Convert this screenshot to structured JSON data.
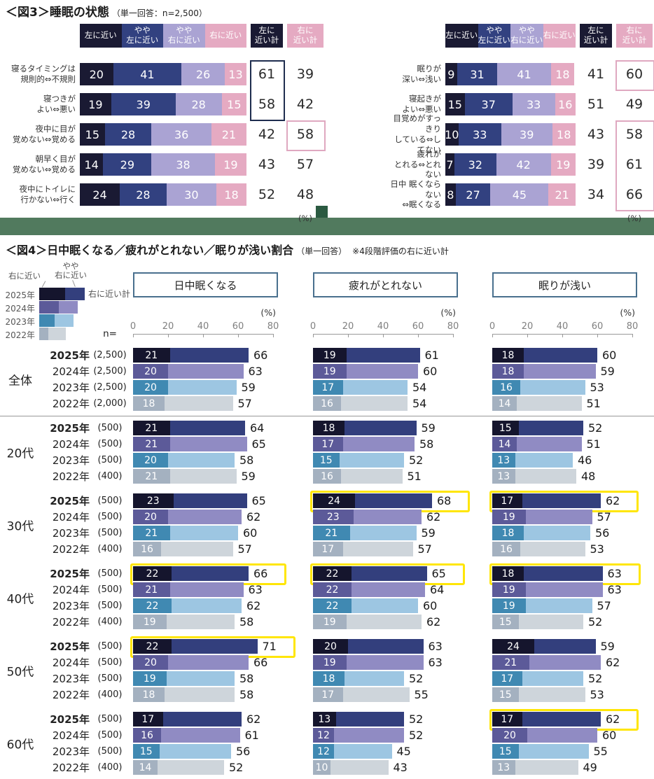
{
  "fig3": {
    "tag": "＜図3＞",
    "title": "睡眠の状態",
    "note": "（単一回答：n=2,500）",
    "seg_headers": [
      "左に近い",
      "やや\n左に近い",
      "やや\n右に近い",
      "右に近い"
    ],
    "sum_headers": [
      "左に\n近い計",
      "右に\n近い計"
    ],
    "percent_label": "(%)"
  },
  "fig4": {
    "tag": "＜図4＞",
    "title": "日中眠くなる／疲れがとれない／眠りが浅い割合",
    "note": "（単一回答）",
    "note2": "※4段階評価の右に近い計",
    "n_header": "n=",
    "percent_label": "(%)",
    "panel_titles": [
      "日中眠くなる",
      "疲れがとれない",
      "眠りが浅い"
    ],
    "legend": {
      "seg1_label": "右に近い",
      "seg2_label": "やや\n右に近い",
      "sum_label": "右に近い計",
      "years": [
        "2025年",
        "2024年",
        "2023年",
        "2022年"
      ]
    }
  },
  "colors": {
    "fig3_segments": [
      "#1a1a33",
      "#324180",
      "#aaa3d3",
      "#e5aac2"
    ],
    "fig3_sum_left_bg": "#1a1a33",
    "fig3_sum_right_bg": "#e5aac2",
    "fig3_box_navy": "#1f2d4f",
    "fig3_box_pink": "#dfa8c0",
    "fig4_year_colors": [
      [
        "#15152d",
        "#333f7d"
      ],
      [
        "#5c5a99",
        "#908bc3"
      ],
      [
        "#4089b2",
        "#9dc6e2"
      ],
      [
        "#a4b1c0",
        "#ced5db"
      ]
    ],
    "highlight_yellow": "#ffe606",
    "divider_green": "#517a5e",
    "divider_square_green": "#2b5a41",
    "panel_border": "#49708e"
  },
  "chart_data": [
    {
      "id": "fig3_left",
      "type": "bar",
      "subtype": "stacked_horizontal",
      "segments": [
        "左に近い",
        "やや左に近い",
        "やや右に近い",
        "右に近い"
      ],
      "xlim": [
        0,
        100
      ],
      "rows": [
        {
          "label_lines": [
            "寝るタイミングは",
            "規則的⇔不規則"
          ],
          "values": [
            20,
            41,
            26,
            13
          ],
          "sum_left": 61,
          "sum_right": 39
        },
        {
          "label_lines": [
            "寝つきが",
            "よい⇔悪い"
          ],
          "values": [
            19,
            39,
            28,
            15
          ],
          "sum_left": 58,
          "sum_right": 42
        },
        {
          "label_lines": [
            "夜中に目が",
            "覚めない⇔覚める"
          ],
          "values": [
            15,
            28,
            36,
            21
          ],
          "sum_left": 42,
          "sum_right": 58
        },
        {
          "label_lines": [
            "朝早く目が",
            "覚めない⇔覚める"
          ],
          "values": [
            14,
            29,
            38,
            19
          ],
          "sum_left": 43,
          "sum_right": 57
        },
        {
          "label_lines": [
            "夜中にトイレに",
            "行かない⇔行く"
          ],
          "values": [
            24,
            28,
            30,
            18
          ],
          "sum_left": 52,
          "sum_right": 48
        }
      ],
      "boxes": [
        {
          "col": "left",
          "from": 0,
          "to": 1,
          "style": "navy"
        },
        {
          "col": "right",
          "from": 2,
          "to": 2,
          "style": "pink"
        }
      ]
    },
    {
      "id": "fig3_right",
      "type": "bar",
      "subtype": "stacked_horizontal",
      "segments": [
        "左に近い",
        "やや左に近い",
        "やや右に近い",
        "右に近い"
      ],
      "xlim": [
        0,
        100
      ],
      "rows": [
        {
          "label_lines": [
            "眠りが",
            "深い⇔浅い"
          ],
          "values": [
            9,
            31,
            41,
            18
          ],
          "sum_left": 41,
          "sum_right": 60
        },
        {
          "label_lines": [
            "寝起きが",
            "よい⇔悪い"
          ],
          "values": [
            15,
            37,
            33,
            16
          ],
          "sum_left": 51,
          "sum_right": 49
        },
        {
          "label_lines": [
            "目覚めがすっきり",
            "している⇔してない"
          ],
          "values": [
            10,
            33,
            39,
            18
          ],
          "sum_left": 43,
          "sum_right": 58
        },
        {
          "label_lines": [
            "疲れが",
            "とれる⇔とれない"
          ],
          "values": [
            7,
            32,
            42,
            19
          ],
          "sum_left": 39,
          "sum_right": 61
        },
        {
          "label_lines": [
            "日中 眠くならない",
            "⇔眠くなる"
          ],
          "values": [
            8,
            27,
            45,
            21
          ],
          "sum_left": 34,
          "sum_right": 66
        }
      ],
      "boxes": [
        {
          "col": "right",
          "from": 0,
          "to": 0,
          "style": "pink"
        },
        {
          "col": "right",
          "from": 2,
          "to": 4,
          "style": "pink"
        }
      ]
    },
    {
      "id": "fig4",
      "type": "bar",
      "subtype": "grouped_horizontal_by_year",
      "xlim": [
        0,
        80
      ],
      "ticks": [
        0,
        20,
        40,
        60,
        80
      ],
      "years": [
        "2025年",
        "2024年",
        "2023年",
        "2022年"
      ],
      "measures": [
        "日中眠くなる",
        "疲れがとれない",
        "眠りが浅い"
      ],
      "groups": [
        {
          "label": "全体",
          "n": [
            "(2,500)",
            "(2,500)",
            "(2,500)",
            "(2,000)"
          ],
          "panels": [
            {
              "bars": [
                [
                  21,
                  66
                ],
                [
                  20,
                  63
                ],
                [
                  20,
                  59
                ],
                [
                  18,
                  57
                ]
              ],
              "highlights": []
            },
            {
              "bars": [
                [
                  19,
                  61
                ],
                [
                  19,
                  60
                ],
                [
                  17,
                  54
                ],
                [
                  16,
                  54
                ]
              ],
              "highlights": []
            },
            {
              "bars": [
                [
                  18,
                  60
                ],
                [
                  18,
                  59
                ],
                [
                  16,
                  53
                ],
                [
                  14,
                  51
                ]
              ],
              "highlights": []
            }
          ]
        },
        {
          "label": "20代",
          "n": [
            "(500)",
            "(500)",
            "(500)",
            "(400)"
          ],
          "panels": [
            {
              "bars": [
                [
                  21,
                  64
                ],
                [
                  21,
                  65
                ],
                [
                  20,
                  58
                ],
                [
                  21,
                  59
                ]
              ],
              "highlights": []
            },
            {
              "bars": [
                [
                  18,
                  59
                ],
                [
                  17,
                  58
                ],
                [
                  15,
                  52
                ],
                [
                  16,
                  51
                ]
              ],
              "highlights": []
            },
            {
              "bars": [
                [
                  15,
                  52
                ],
                [
                  14,
                  51
                ],
                [
                  13,
                  46
                ],
                [
                  13,
                  48
                ]
              ],
              "highlights": []
            }
          ]
        },
        {
          "label": "30代",
          "n": [
            "(500)",
            "(500)",
            "(500)",
            "(400)"
          ],
          "panels": [
            {
              "bars": [
                [
                  23,
                  65
                ],
                [
                  20,
                  62
                ],
                [
                  21,
                  60
                ],
                [
                  16,
                  57
                ]
              ],
              "highlights": []
            },
            {
              "bars": [
                [
                  24,
                  68
                ],
                [
                  23,
                  62
                ],
                [
                  21,
                  59
                ],
                [
                  17,
                  57
                ]
              ],
              "highlights": [
                0
              ]
            },
            {
              "bars": [
                [
                  17,
                  62
                ],
                [
                  19,
                  57
                ],
                [
                  18,
                  56
                ],
                [
                  16,
                  53
                ]
              ],
              "highlights": [
                0
              ]
            }
          ]
        },
        {
          "label": "40代",
          "n": [
            "(500)",
            "(500)",
            "(500)",
            "(400)"
          ],
          "panels": [
            {
              "bars": [
                [
                  22,
                  66
                ],
                [
                  21,
                  63
                ],
                [
                  22,
                  62
                ],
                [
                  19,
                  58
                ]
              ],
              "highlights": [
                0
              ]
            },
            {
              "bars": [
                [
                  22,
                  65
                ],
                [
                  22,
                  64
                ],
                [
                  22,
                  60
                ],
                [
                  19,
                  62
                ]
              ],
              "highlights": [
                0
              ]
            },
            {
              "bars": [
                [
                  18,
                  63
                ],
                [
                  19,
                  63
                ],
                [
                  19,
                  57
                ],
                [
                  15,
                  52
                ]
              ],
              "highlights": [
                0
              ]
            }
          ]
        },
        {
          "label": "50代",
          "n": [
            "(500)",
            "(500)",
            "(500)",
            "(400)"
          ],
          "panels": [
            {
              "bars": [
                [
                  22,
                  71
                ],
                [
                  20,
                  66
                ],
                [
                  19,
                  58
                ],
                [
                  18,
                  58
                ]
              ],
              "highlights": [
                0
              ]
            },
            {
              "bars": [
                [
                  20,
                  63
                ],
                [
                  19,
                  63
                ],
                [
                  18,
                  52
                ],
                [
                  17,
                  55
                ]
              ],
              "highlights": []
            },
            {
              "bars": [
                [
                  24,
                  59
                ],
                [
                  21,
                  62
                ],
                [
                  17,
                  52
                ],
                [
                  15,
                  53
                ]
              ],
              "highlights": []
            }
          ]
        },
        {
          "label": "60代",
          "n": [
            "(500)",
            "(500)",
            "(500)",
            "(400)"
          ],
          "panels": [
            {
              "bars": [
                [
                  17,
                  62
                ],
                [
                  16,
                  61
                ],
                [
                  15,
                  56
                ],
                [
                  14,
                  52
                ]
              ],
              "highlights": []
            },
            {
              "bars": [
                [
                  13,
                  52
                ],
                [
                  12,
                  52
                ],
                [
                  12,
                  45
                ],
                [
                  10,
                  43
                ]
              ],
              "highlights": []
            },
            {
              "bars": [
                [
                  17,
                  62
                ],
                [
                  20,
                  60
                ],
                [
                  15,
                  55
                ],
                [
                  13,
                  49
                ]
              ],
              "highlights": [
                0
              ]
            }
          ]
        }
      ]
    }
  ]
}
